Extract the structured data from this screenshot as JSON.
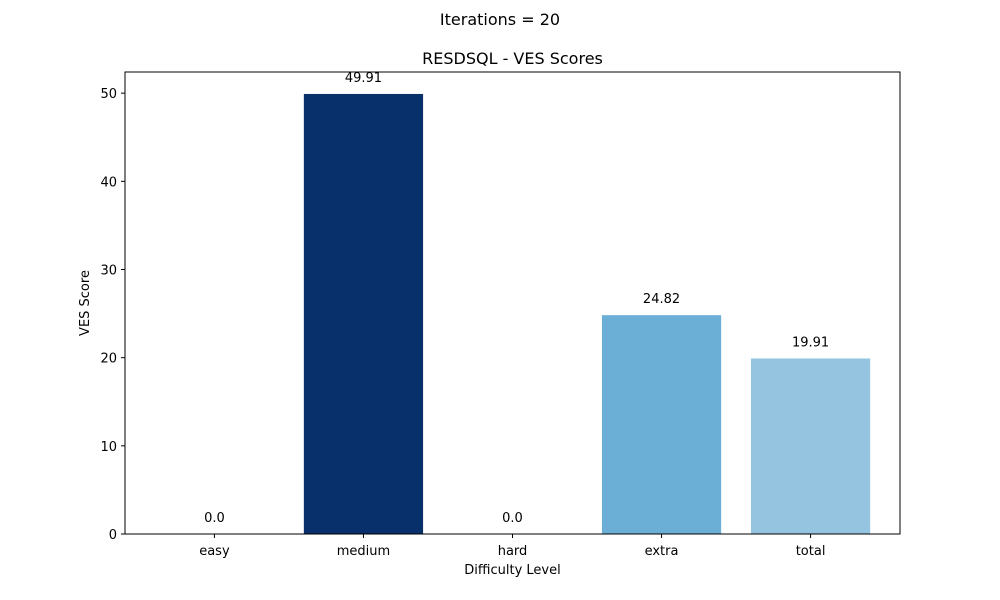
{
  "figure": {
    "suptitle": "Iterations = 20"
  },
  "chart_data": {
    "type": "bar",
    "title": "RESDSQL - VES Scores",
    "xlabel": "Difficulty Level",
    "ylabel": "VES Score",
    "categories": [
      "easy",
      "medium",
      "hard",
      "extra",
      "total"
    ],
    "values": [
      0.0,
      49.91,
      0.0,
      24.82,
      19.91
    ],
    "value_labels": [
      "0.0",
      "49.91",
      "0.0",
      "24.82",
      "19.91"
    ],
    "bar_colors": [
      "#08306b",
      "#08306b",
      "#2171b5",
      "#6baed6",
      "#94c4df"
    ],
    "ylim": [
      0,
      52.4
    ],
    "yticks": [
      0,
      10,
      20,
      30,
      40,
      50
    ],
    "grid": false,
    "legend": null
  }
}
